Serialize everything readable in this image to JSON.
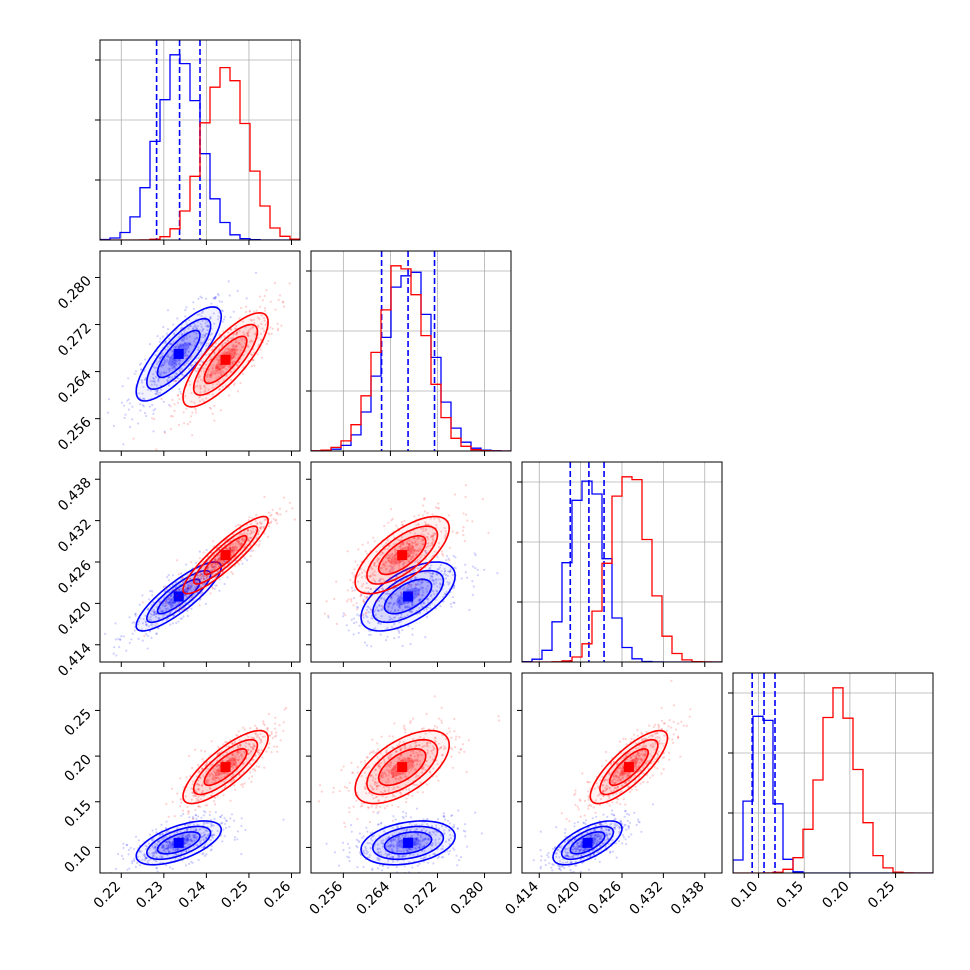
{
  "chart_data": {
    "type": "corner",
    "colors": {
      "blue": "#0000ff",
      "red": "#ff0000"
    },
    "grid": true,
    "parameters": [
      {
        "range": [
          0.215,
          0.262
        ],
        "ticks": [
          0.22,
          0.23,
          0.24,
          0.25,
          0.26
        ],
        "tick_labels": [
          "0.22",
          "0.23",
          "0.24",
          "0.25",
          "0.26"
        ]
      },
      {
        "range": [
          0.2505,
          0.2845
        ],
        "ticks": [
          0.256,
          0.264,
          0.272,
          0.28
        ],
        "tick_labels": [
          "0.256",
          "0.264",
          "0.272",
          "0.280"
        ]
      },
      {
        "range": [
          0.4115,
          0.4405
        ],
        "ticks": [
          0.414,
          0.42,
          0.426,
          0.432,
          0.438
        ],
        "tick_labels": [
          "0.414",
          "0.420",
          "0.426",
          "0.432",
          "0.438"
        ]
      },
      {
        "range": [
          0.072,
          0.291
        ],
        "ticks": [
          0.1,
          0.15,
          0.2,
          0.25
        ],
        "tick_labels": [
          "0.10",
          "0.15",
          "0.20",
          "0.25"
        ]
      }
    ],
    "series": [
      {
        "color": "blue",
        "means": [
          0.2335,
          0.267,
          0.421,
          0.105
        ],
        "sds": [
          0.005,
          0.004,
          0.0025,
          0.012
        ],
        "quantiles": [
          [
            0.2283,
            0.2337,
            0.2385
          ],
          [
            0.2625,
            0.267,
            0.2715
          ],
          [
            0.4185,
            0.4212,
            0.4234
          ],
          [
            0.093,
            0.106,
            0.118
          ]
        ],
        "correlations": {
          "0-1": 0.8,
          "0-2": 0.85,
          "0-3": 0.6,
          "1-2": 0.6,
          "1-3": 0.3,
          "2-3": 0.65
        }
      },
      {
        "color": "red",
        "means": [
          0.2445,
          0.266,
          0.427,
          0.188
        ],
        "sds": [
          0.005,
          0.004,
          0.0028,
          0.02
        ],
        "correlations": {
          "0-1": 0.8,
          "0-2": 0.9,
          "0-3": 0.8,
          "1-2": 0.7,
          "1-3": 0.6,
          "2-3": 0.8
        }
      }
    ]
  }
}
